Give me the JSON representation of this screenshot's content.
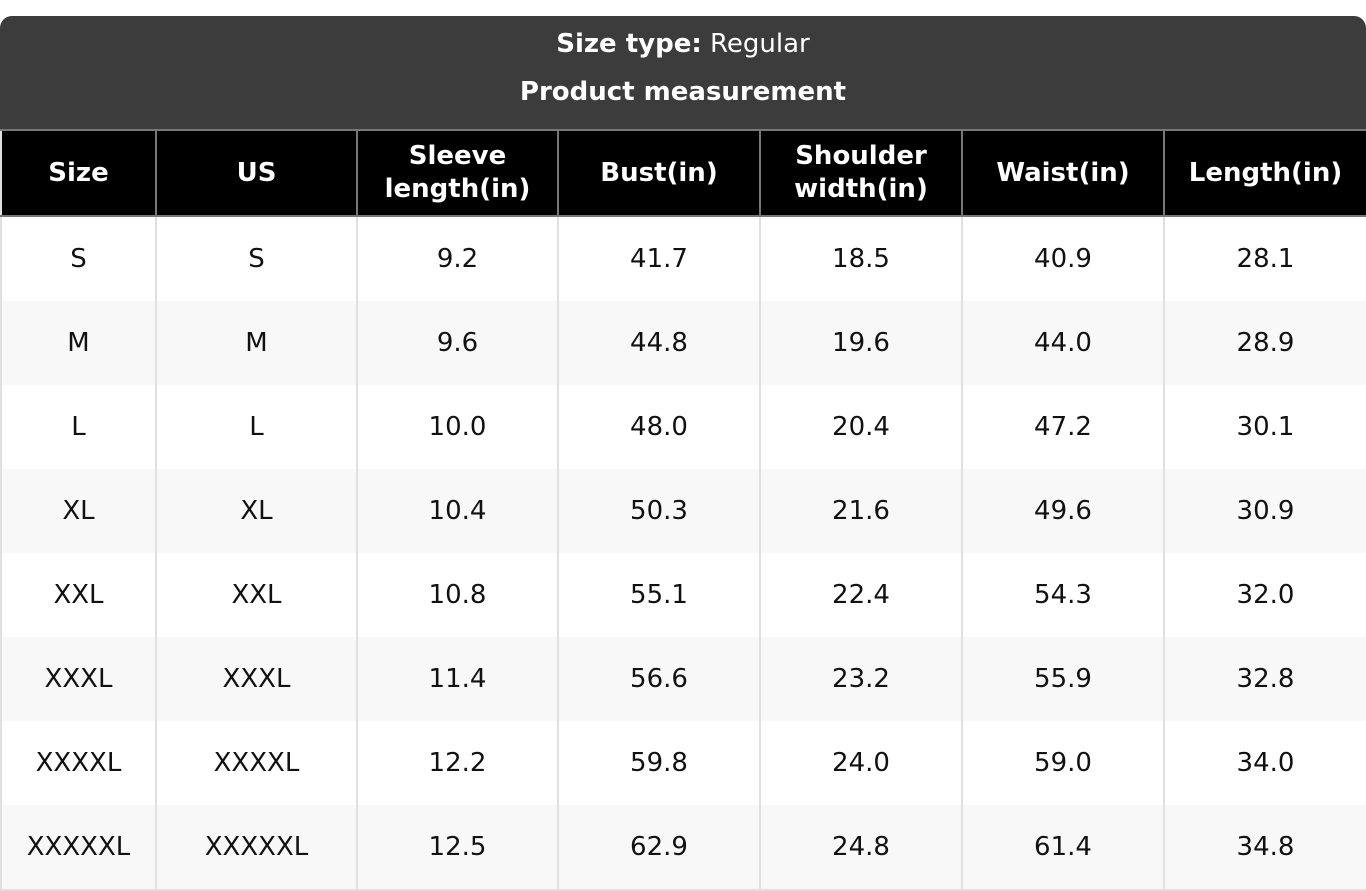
{
  "header": {
    "size_type_label": "Size type:",
    "size_type_value": "Regular",
    "subtitle": "Product measurement"
  },
  "columns": [
    "Size",
    "US",
    "Sleeve length(in)",
    "Bust(in)",
    "Shoulder width(in)",
    "Waist(in)",
    "Length(in)"
  ],
  "rows": [
    [
      "S",
      "S",
      "9.2",
      "41.7",
      "18.5",
      "40.9",
      "28.1"
    ],
    [
      "M",
      "M",
      "9.6",
      "44.8",
      "19.6",
      "44.0",
      "28.9"
    ],
    [
      "L",
      "L",
      "10.0",
      "48.0",
      "20.4",
      "47.2",
      "30.1"
    ],
    [
      "XL",
      "XL",
      "10.4",
      "50.3",
      "21.6",
      "49.6",
      "30.9"
    ],
    [
      "XXL",
      "XXL",
      "10.8",
      "55.1",
      "22.4",
      "54.3",
      "32.0"
    ],
    [
      "XXXL",
      "XXXL",
      "11.4",
      "56.6",
      "23.2",
      "55.9",
      "32.8"
    ],
    [
      "XXXXL",
      "XXXXL",
      "12.2",
      "59.8",
      "24.0",
      "59.0",
      "34.0"
    ],
    [
      "XXXXXL",
      "XXXXXL",
      "12.5",
      "62.9",
      "24.8",
      "61.4",
      "34.8"
    ]
  ],
  "colors": {
    "title_bg": "#3c3c3c",
    "header_bg": "#000000",
    "stripe": "#f8f8f8"
  }
}
